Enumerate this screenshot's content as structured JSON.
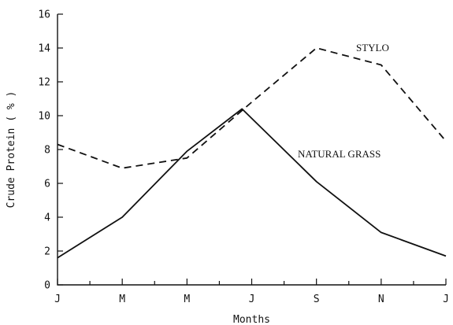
{
  "chart_data": {
    "type": "line",
    "title": "",
    "xlabel": "Months",
    "ylabel": "Crude Protein ( % )",
    "categories": [
      "J",
      "M",
      "M",
      "J",
      "S",
      "N",
      "J"
    ],
    "ylim": [
      0,
      16
    ],
    "yticks": [
      0,
      2,
      4,
      6,
      8,
      10,
      12,
      14,
      16
    ],
    "grid": false,
    "series": [
      {
        "name": "STYLO",
        "style": "dashed",
        "color": "#111111",
        "x": [
          0,
          1,
          2,
          3,
          4,
          5,
          6
        ],
        "values": [
          8.3,
          6.9,
          7.5,
          10.8,
          14.0,
          13.0,
          8.5
        ]
      },
      {
        "name": "NATURAL GRASS",
        "style": "solid",
        "color": "#111111",
        "x": [
          0,
          1,
          2,
          2.85,
          4,
          5,
          6
        ],
        "values": [
          1.6,
          4.0,
          7.9,
          10.4,
          6.1,
          3.1,
          1.7
        ]
      }
    ]
  }
}
